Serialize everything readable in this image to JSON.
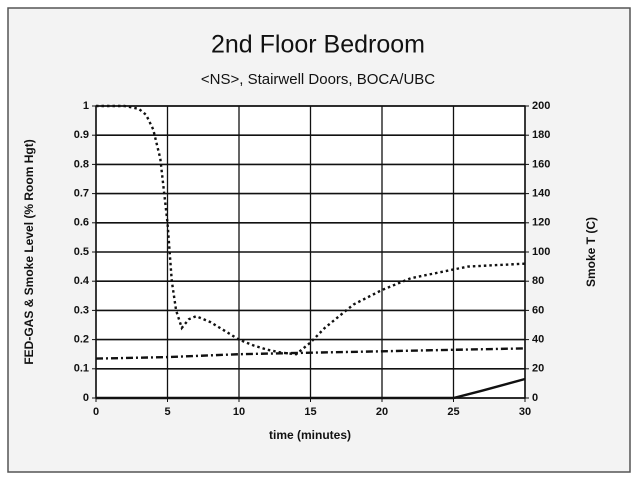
{
  "chart_data": {
    "type": "line",
    "title": "2nd Floor Bedroom",
    "subtitle": "<NS>,  Stairwell Doors, BOCA/UBC",
    "x_label": "time (minutes)",
    "y_label": "FED-GAS & Smoke Level (% Room Hgt)",
    "y2_label": "Smoke T (C)",
    "xlim": [
      0,
      30
    ],
    "xticks": [
      0,
      5,
      10,
      15,
      20,
      25,
      30
    ],
    "ylim": [
      0,
      1
    ],
    "yticks": [
      0,
      0.1,
      0.2,
      0.3,
      0.4,
      0.5,
      0.6,
      0.7,
      0.8,
      0.9,
      1
    ],
    "y2lim": [
      0,
      200
    ],
    "y2ticks": [
      0,
      20,
      40,
      60,
      80,
      100,
      120,
      140,
      160,
      180,
      200
    ],
    "grid": true,
    "series": [
      {
        "color": "#111111",
        "dash": "dotted",
        "x": [
          0,
          2,
          3,
          3.5,
          4,
          4.5,
          5,
          5.3,
          5.6,
          6,
          6.5,
          7,
          8,
          9,
          10,
          11,
          12,
          13,
          14,
          15,
          16,
          17,
          18,
          20,
          22,
          24,
          26,
          28,
          30
        ],
        "values": [
          1,
          1,
          0.99,
          0.97,
          0.92,
          0.82,
          0.6,
          0.4,
          0.3,
          0.24,
          0.27,
          0.28,
          0.26,
          0.23,
          0.2,
          0.18,
          0.165,
          0.155,
          0.15,
          0.19,
          0.24,
          0.28,
          0.32,
          0.37,
          0.41,
          0.43,
          0.45,
          0.455,
          0.46
        ]
      },
      {
        "color": "#111111",
        "dash": "dashdot",
        "axis": "y2",
        "x": [
          0,
          5,
          10,
          15,
          20,
          25,
          30
        ],
        "values": [
          27,
          28,
          30,
          31,
          32,
          33,
          34
        ]
      },
      {
        "color": "#111111",
        "dash": "solid",
        "x": [
          0,
          25,
          27,
          30
        ],
        "values": [
          0,
          0,
          0.025,
          0.065
        ]
      }
    ]
  }
}
